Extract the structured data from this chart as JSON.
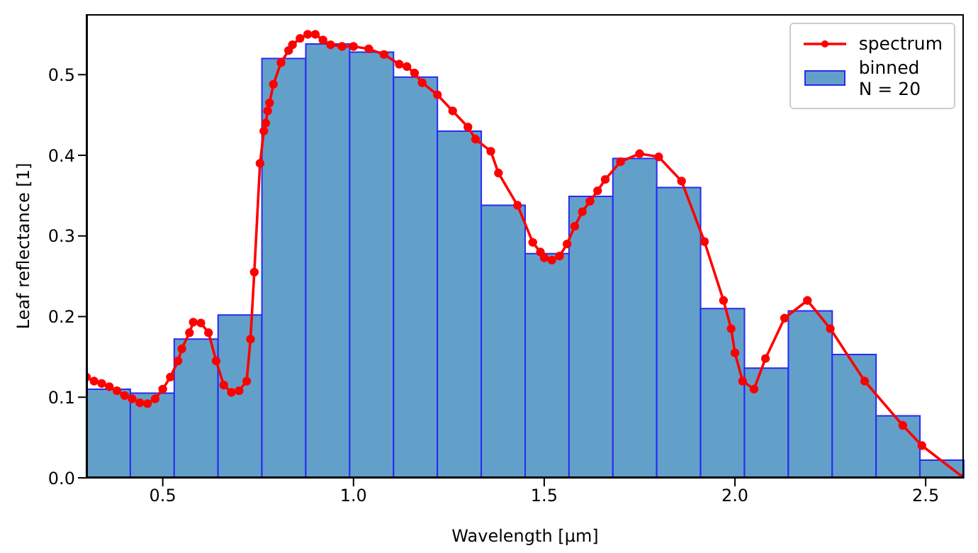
{
  "chart_data": {
    "type": "histogram",
    "xlabel": "Wavelength [µm]",
    "ylabel": "Leaf reflectance [1]",
    "xlim": [
      0.3,
      2.6
    ],
    "ylim": [
      0,
      0.575
    ],
    "xticks": [
      0.5,
      {
        "value": 1,
        "label": "1.0"
      },
      1.5,
      {
        "value": 2,
        "label": "2.0"
      },
      2.5
    ],
    "yticks": [
      {
        "value": 0,
        "label": "0.0"
      },
      0.1,
      0.2,
      0.3,
      0.4,
      0.5
    ],
    "grid": false,
    "legend": "top right",
    "series": [
      {
        "name": "binned\nN = 20",
        "color": "#62a0ca",
        "bins": [
          0.3,
          0.415,
          0.53,
          0.645,
          0.76,
          0.875,
          0.99,
          1.105,
          1.22,
          1.335,
          1.45,
          1.565,
          1.68,
          1.795,
          1.91,
          2.025,
          2.14,
          2.255,
          2.37,
          2.485,
          2.6
        ],
        "values": [
          0.11,
          0.105,
          0.172,
          0.202,
          0.52,
          0.538,
          0.528,
          0.497,
          0.43,
          0.338,
          0.278,
          0.349,
          0.396,
          0.36,
          0.21,
          0.136,
          0.207,
          0.153,
          0.077,
          0.022
        ]
      },
      {
        "name": "spectrum",
        "type": "line",
        "color": "#ff0000",
        "marker": "circle",
        "x": [
          0.3,
          0.32,
          0.34,
          0.36,
          0.38,
          0.4,
          0.42,
          0.44,
          0.46,
          0.48,
          0.5,
          0.52,
          0.54,
          0.55,
          0.57,
          0.58,
          0.6,
          0.62,
          0.64,
          0.66,
          0.68,
          0.7,
          0.72,
          0.73,
          0.74,
          0.755,
          0.765,
          0.77,
          0.775,
          0.78,
          0.79,
          0.81,
          0.83,
          0.84,
          0.86,
          0.88,
          0.9,
          0.92,
          0.94,
          0.97,
          1.0,
          1.04,
          1.08,
          1.12,
          1.14,
          1.16,
          1.18,
          1.22,
          1.26,
          1.3,
          1.32,
          1.36,
          1.38,
          1.43,
          1.47,
          1.49,
          1.5,
          1.52,
          1.54,
          1.56,
          1.58,
          1.6,
          1.62,
          1.64,
          1.66,
          1.7,
          1.75,
          1.8,
          1.86,
          1.92,
          1.97,
          1.99,
          2.0,
          2.02,
          2.05,
          2.08,
          2.13,
          2.19,
          2.25,
          2.34,
          2.44,
          2.49,
          2.6
        ],
        "values": [
          0.125,
          0.12,
          0.117,
          0.113,
          0.108,
          0.102,
          0.098,
          0.093,
          0.092,
          0.098,
          0.11,
          0.125,
          0.145,
          0.16,
          0.18,
          0.193,
          0.192,
          0.18,
          0.145,
          0.115,
          0.106,
          0.108,
          0.12,
          0.172,
          0.255,
          0.39,
          0.43,
          0.44,
          0.455,
          0.465,
          0.488,
          0.515,
          0.53,
          0.537,
          0.545,
          0.55,
          0.55,
          0.543,
          0.537,
          0.535,
          0.535,
          0.532,
          0.525,
          0.513,
          0.51,
          0.502,
          0.49,
          0.475,
          0.455,
          0.435,
          0.42,
          0.405,
          0.378,
          0.338,
          0.292,
          0.28,
          0.273,
          0.27,
          0.275,
          0.29,
          0.312,
          0.33,
          0.343,
          0.356,
          0.37,
          0.392,
          0.402,
          0.398,
          0.368,
          0.293,
          0.22,
          0.185,
          0.155,
          0.12,
          0.11,
          0.148,
          0.198,
          0.22,
          0.185,
          0.12,
          0.065,
          0.04,
          0.0
        ]
      }
    ]
  }
}
